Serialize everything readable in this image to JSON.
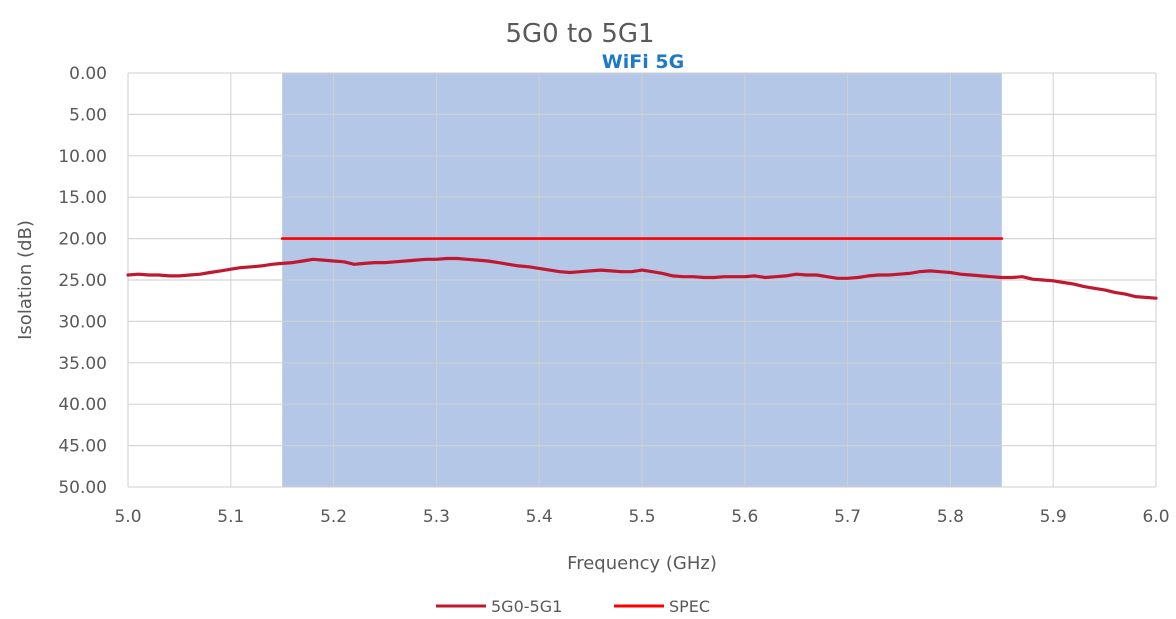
{
  "chart_data": {
    "type": "line",
    "title": "5G0 to 5G1",
    "xlabel": "Frequency (GHz)",
    "ylabel": "Isolation (dB)",
    "xlim": [
      5.0,
      6.0
    ],
    "ylim": [
      0,
      50
    ],
    "y_reversed": true,
    "grid": true,
    "legend_position": "bottom",
    "x_tick_labels": [
      "5.0",
      "5.1",
      "5.2",
      "5.3",
      "5.4",
      "5.5",
      "5.6",
      "5.7",
      "5.8",
      "5.9",
      "6.0"
    ],
    "y_tick_labels": [
      "0.00",
      "5.00",
      "10.00",
      "15.00",
      "20.00",
      "25.00",
      "30.00",
      "35.00",
      "40.00",
      "45.00",
      "50.00"
    ],
    "band": {
      "label": "WiFi 5G",
      "x_start": 5.15,
      "x_end": 5.85,
      "color": "#b4c7e7"
    },
    "series": [
      {
        "name": "5G0-5G1",
        "color": "#c0182f",
        "x": [
          5.0,
          5.01,
          5.02,
          5.03,
          5.04,
          5.05,
          5.06,
          5.07,
          5.08,
          5.09,
          5.1,
          5.11,
          5.12,
          5.13,
          5.14,
          5.15,
          5.16,
          5.17,
          5.18,
          5.19,
          5.2,
          5.21,
          5.22,
          5.23,
          5.24,
          5.25,
          5.26,
          5.27,
          5.28,
          5.29,
          5.3,
          5.31,
          5.32,
          5.33,
          5.34,
          5.35,
          5.36,
          5.37,
          5.38,
          5.39,
          5.4,
          5.41,
          5.42,
          5.43,
          5.44,
          5.45,
          5.46,
          5.47,
          5.48,
          5.49,
          5.5,
          5.51,
          5.52,
          5.53,
          5.54,
          5.55,
          5.56,
          5.57,
          5.58,
          5.59,
          5.6,
          5.61,
          5.62,
          5.63,
          5.64,
          5.65,
          5.66,
          5.67,
          5.68,
          5.69,
          5.7,
          5.71,
          5.72,
          5.73,
          5.74,
          5.75,
          5.76,
          5.77,
          5.78,
          5.79,
          5.8,
          5.81,
          5.82,
          5.83,
          5.84,
          5.85,
          5.86,
          5.87,
          5.88,
          5.89,
          5.9,
          5.91,
          5.92,
          5.93,
          5.94,
          5.95,
          5.96,
          5.97,
          5.98,
          5.99,
          6.0
        ],
        "values": [
          24.4,
          24.3,
          24.4,
          24.4,
          24.5,
          24.5,
          24.4,
          24.3,
          24.1,
          23.9,
          23.7,
          23.5,
          23.4,
          23.3,
          23.1,
          23.0,
          22.9,
          22.7,
          22.5,
          22.6,
          22.7,
          22.8,
          23.1,
          23.0,
          22.9,
          22.9,
          22.8,
          22.7,
          22.6,
          22.5,
          22.5,
          22.4,
          22.4,
          22.5,
          22.6,
          22.7,
          22.9,
          23.1,
          23.3,
          23.4,
          23.6,
          23.8,
          24.0,
          24.1,
          24.0,
          23.9,
          23.8,
          23.9,
          24.0,
          24.0,
          23.8,
          24.0,
          24.2,
          24.5,
          24.6,
          24.6,
          24.7,
          24.7,
          24.6,
          24.6,
          24.6,
          24.5,
          24.7,
          24.6,
          24.5,
          24.3,
          24.4,
          24.4,
          24.6,
          24.8,
          24.8,
          24.7,
          24.5,
          24.4,
          24.4,
          24.3,
          24.2,
          24.0,
          23.9,
          24.0,
          24.1,
          24.3,
          24.4,
          24.5,
          24.6,
          24.7,
          24.7,
          24.6,
          24.9,
          25.0,
          25.1,
          25.3,
          25.5,
          25.8,
          26.0,
          26.2,
          26.5,
          26.7,
          27.0,
          27.1,
          27.2
        ]
      },
      {
        "name": "SPEC",
        "color": "#ff0000",
        "x": [
          5.15,
          5.85
        ],
        "values": [
          20,
          20
        ]
      }
    ]
  }
}
